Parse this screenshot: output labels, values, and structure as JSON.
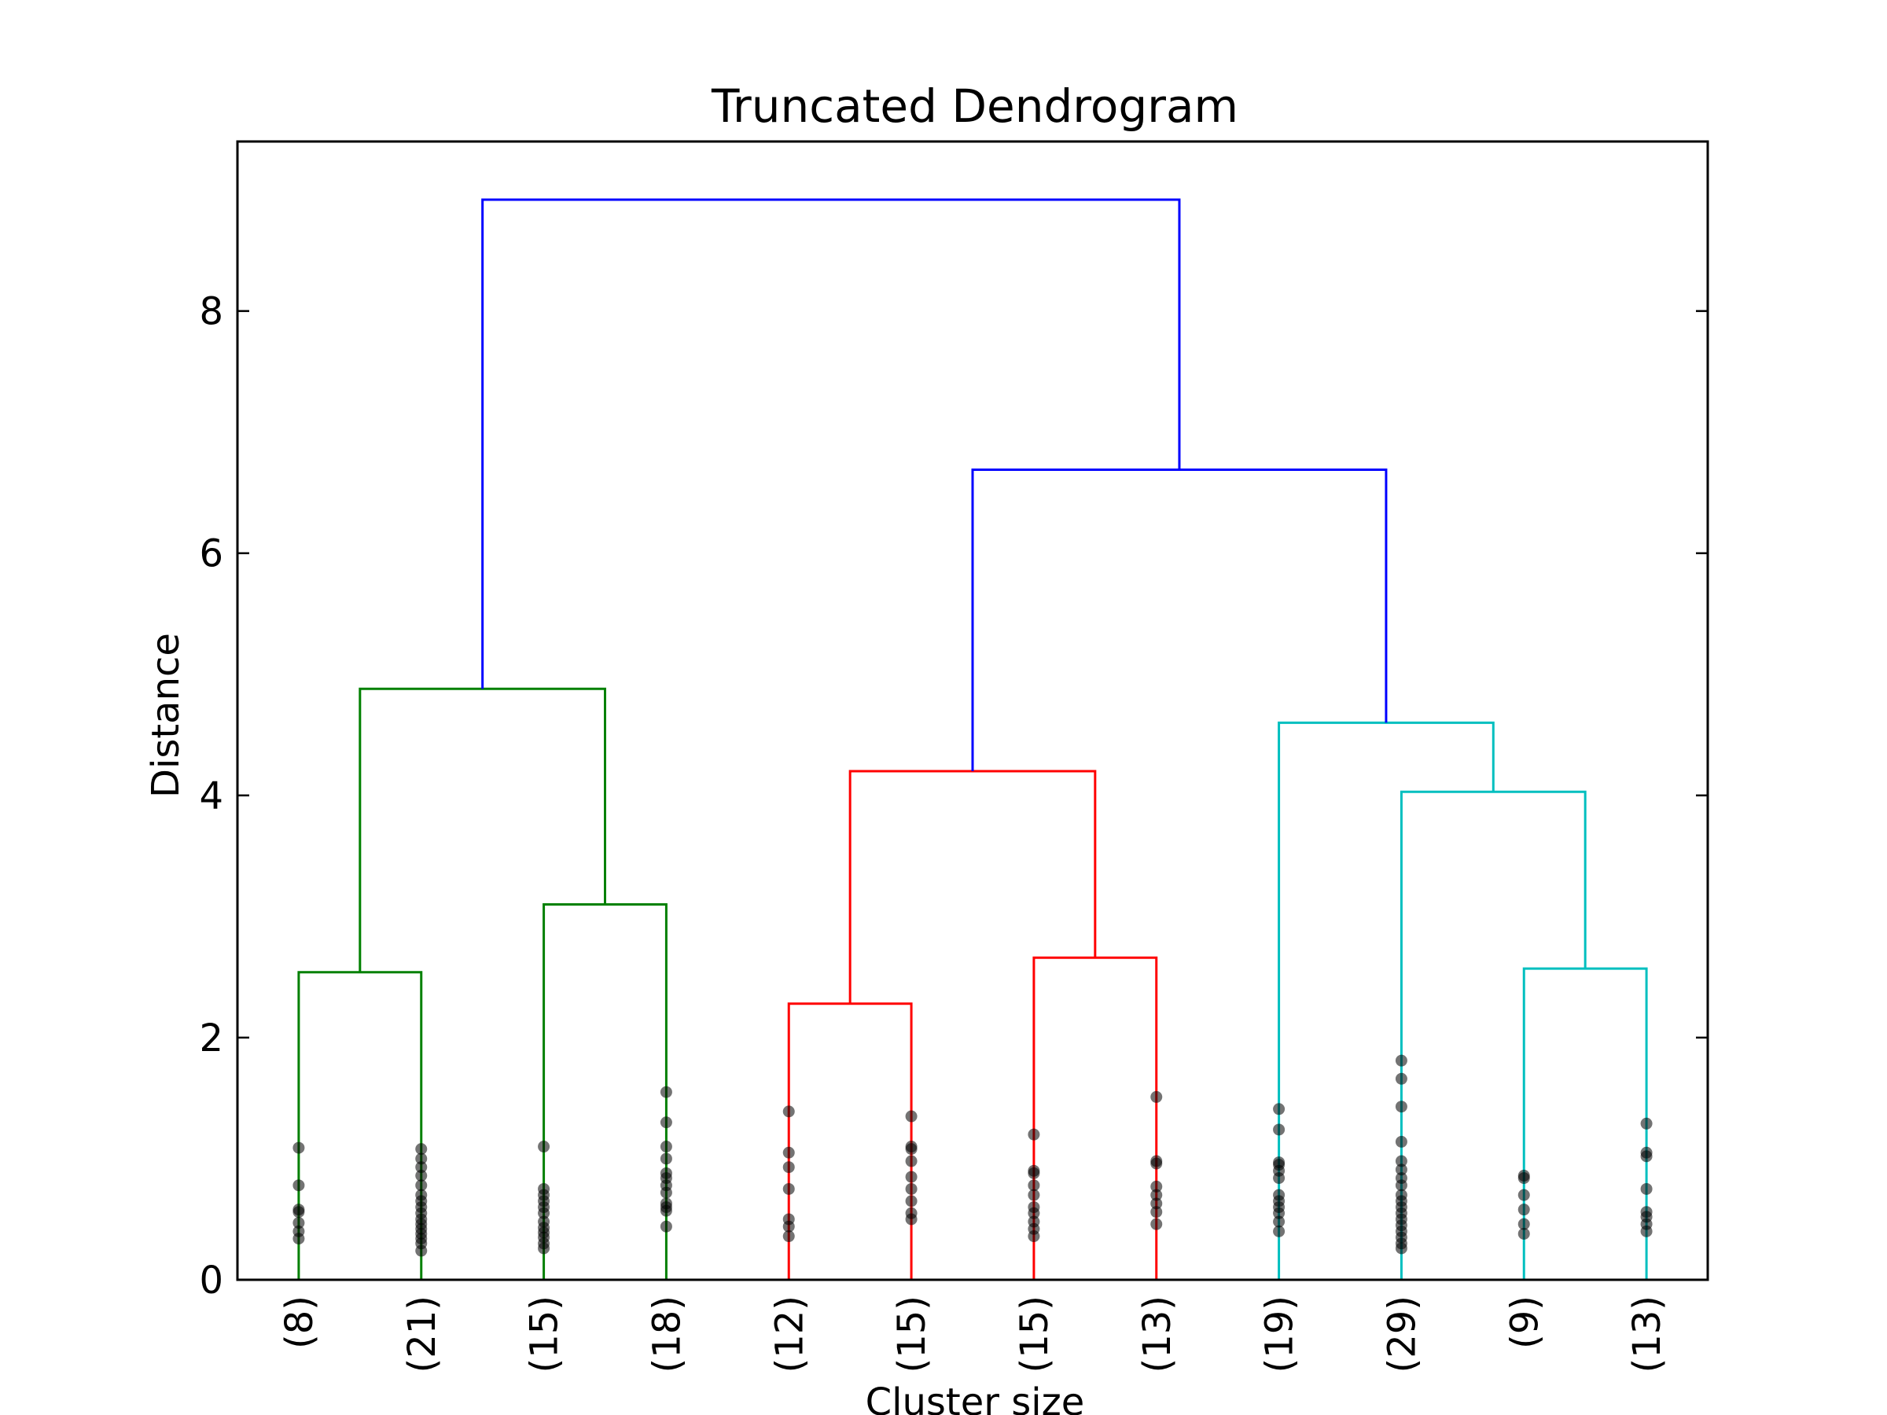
{
  "chart_data": {
    "type": "dendrogram",
    "title": "Truncated Dendrogram",
    "xlabel": "Cluster size",
    "ylabel": "Distance",
    "ylim": [
      0,
      9.4
    ],
    "yticks": [
      0,
      2,
      4,
      6,
      8
    ],
    "grid": false,
    "leaves": [
      "(8)",
      "(21)",
      "(15)",
      "(18)",
      "(12)",
      "(15)",
      "(15)",
      "(13)",
      "(19)",
      "(29)",
      "(9)",
      "(13)"
    ],
    "colors": {
      "green": "#008000",
      "red": "#ff0000",
      "cyan": "#00bfbf",
      "blue": "#0000ff",
      "dot": "#000000"
    },
    "links": [
      {
        "left": "L0",
        "right": "L1",
        "height": 2.54,
        "color": "green"
      },
      {
        "left": "L2",
        "right": "L3",
        "height": 3.1,
        "color": "green"
      },
      {
        "left": "L0-1",
        "right": "L2-3",
        "height": 4.88,
        "color": "green"
      },
      {
        "left": "L4",
        "right": "L5",
        "height": 2.28,
        "color": "red"
      },
      {
        "left": "L6",
        "right": "L7",
        "height": 2.66,
        "color": "red"
      },
      {
        "left": "L4-5",
        "right": "L6-7",
        "height": 4.2,
        "color": "red"
      },
      {
        "left": "L10",
        "right": "L11",
        "height": 2.57,
        "color": "cyan"
      },
      {
        "left": "L9",
        "right": "L10-11",
        "height": 4.03,
        "color": "cyan"
      },
      {
        "left": "L8",
        "right": "L9-11",
        "height": 4.6,
        "color": "cyan"
      },
      {
        "left": "L4-7",
        "right": "L8-11",
        "height": 6.69,
        "color": "blue"
      },
      {
        "left": "L0-3",
        "right": "L4-11",
        "height": 8.92,
        "color": "blue"
      }
    ],
    "leaf_points": [
      [
        0.34,
        0.4,
        0.47,
        0.56,
        0.58,
        0.78,
        1.09
      ],
      [
        0.24,
        0.3,
        0.34,
        0.38,
        0.42,
        0.46,
        0.5,
        0.55,
        0.6,
        0.65,
        0.7,
        0.78,
        0.86,
        0.93,
        1.0,
        1.08
      ],
      [
        0.26,
        0.3,
        0.35,
        0.39,
        0.43,
        0.48,
        0.55,
        0.6,
        0.65,
        0.7,
        0.75,
        1.1
      ],
      [
        0.44,
        0.57,
        0.6,
        0.63,
        0.72,
        0.78,
        0.84,
        0.88,
        1.0,
        1.1,
        1.3,
        1.55
      ],
      [
        0.36,
        0.44,
        0.5,
        0.75,
        0.93,
        1.05,
        1.39
      ],
      [
        0.5,
        0.55,
        0.65,
        0.75,
        0.85,
        0.98,
        1.08,
        1.1,
        1.35
      ],
      [
        0.36,
        0.42,
        0.48,
        0.55,
        0.6,
        0.7,
        0.78,
        0.88,
        0.9,
        1.2
      ],
      [
        0.46,
        0.56,
        0.63,
        0.7,
        0.77,
        0.96,
        0.98,
        1.51
      ],
      [
        0.4,
        0.48,
        0.55,
        0.6,
        0.65,
        0.7,
        0.84,
        0.9,
        0.95,
        0.97,
        1.24,
        1.41
      ],
      [
        0.26,
        0.3,
        0.35,
        0.4,
        0.45,
        0.5,
        0.55,
        0.6,
        0.65,
        0.7,
        0.78,
        0.84,
        0.91,
        0.98,
        1.14,
        1.43,
        1.66,
        1.81
      ],
      [
        0.38,
        0.46,
        0.58,
        0.7,
        0.84,
        0.86
      ],
      [
        0.4,
        0.46,
        0.52,
        0.56,
        0.75,
        1.02,
        1.05,
        1.29
      ]
    ]
  }
}
